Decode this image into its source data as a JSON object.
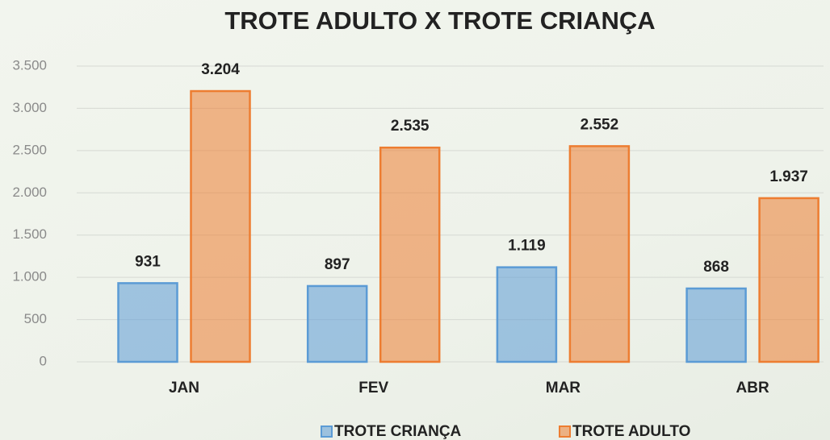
{
  "chart_data": {
    "type": "bar",
    "title": "TROTE  ADULTO   X   TROTE  CRIANÇA",
    "categories": [
      "JAN",
      "FEV",
      "MAR",
      "ABR"
    ],
    "series": [
      {
        "name": "TROTE CRIANÇA",
        "color": "#5b9bd5",
        "values": [
          931,
          897,
          1119,
          868
        ],
        "value_labels": [
          "931",
          "897",
          "1.119",
          "868"
        ]
      },
      {
        "name": "TROTE ADULTO",
        "color": "#ed7d31",
        "values": [
          3204,
          2535,
          2552,
          1937
        ],
        "value_labels": [
          "3.204",
          "2.535",
          "2.552",
          "1.937"
        ]
      }
    ],
    "ylim": [
      0,
      3500
    ],
    "yticks": [
      0,
      500,
      {
        "value": 1000,
        "label": "1.000"
      },
      {
        "value": 1500,
        "label": "1.500"
      },
      {
        "value": 2000,
        "label": "2.000"
      },
      {
        "value": 2500,
        "label": "2.500"
      },
      {
        "value": 3000,
        "label": "3.000"
      },
      {
        "value": 3500,
        "label": "3.500"
      }
    ],
    "grid": true,
    "legend": "bottom"
  }
}
